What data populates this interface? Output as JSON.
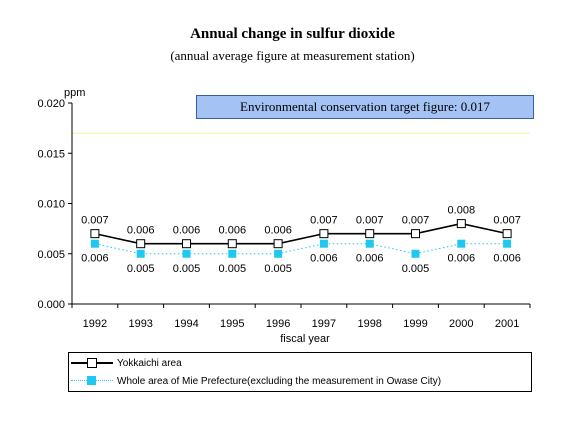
{
  "chart_data": {
    "type": "line",
    "title": "Annual change in sulfur dioxide",
    "subtitle": "(annual average figure at measurement station)",
    "xlabel": "fiscal year",
    "ylabel": "ppm",
    "categories": [
      "1992",
      "1993",
      "1994",
      "1995",
      "1996",
      "1997",
      "1998",
      "1999",
      "2000",
      "2001"
    ],
    "ylim": [
      0,
      0.02
    ],
    "yticks": [
      "0.000",
      "0.005",
      "0.010",
      "0.015",
      "0.020"
    ],
    "series": [
      {
        "name": "Yokkaichi area",
        "values": [
          0.007,
          0.006,
          0.006,
          0.006,
          0.006,
          0.007,
          0.007,
          0.007,
          0.008,
          0.007
        ],
        "labels": [
          "0.007",
          "0.006",
          "0.006",
          "0.006",
          "0.006",
          "0.007",
          "0.007",
          "0.007",
          "0.008",
          "0.007"
        ],
        "color": "#000000",
        "marker": "open-square",
        "line": "solid"
      },
      {
        "name": "Whole area of Mie Prefecture(excluding the measurement in Owase City)",
        "values": [
          0.006,
          0.005,
          0.005,
          0.005,
          0.005,
          0.006,
          0.006,
          0.005,
          0.006,
          0.006
        ],
        "labels": [
          "0.006",
          "0.005",
          "0.005",
          "0.005",
          "0.005",
          "0.006",
          "0.006",
          "0.005",
          "0.006",
          "0.006"
        ],
        "color": "#1ec8f0",
        "marker": "filled-square",
        "line": "dotted"
      }
    ],
    "reference_line": {
      "value": 0.017,
      "label": "Environmental conservation target figure: 0.017",
      "color": "#f4f49c"
    },
    "annotation_box_color": "#a4c2f4",
    "grid": false,
    "legend": "bottom"
  }
}
